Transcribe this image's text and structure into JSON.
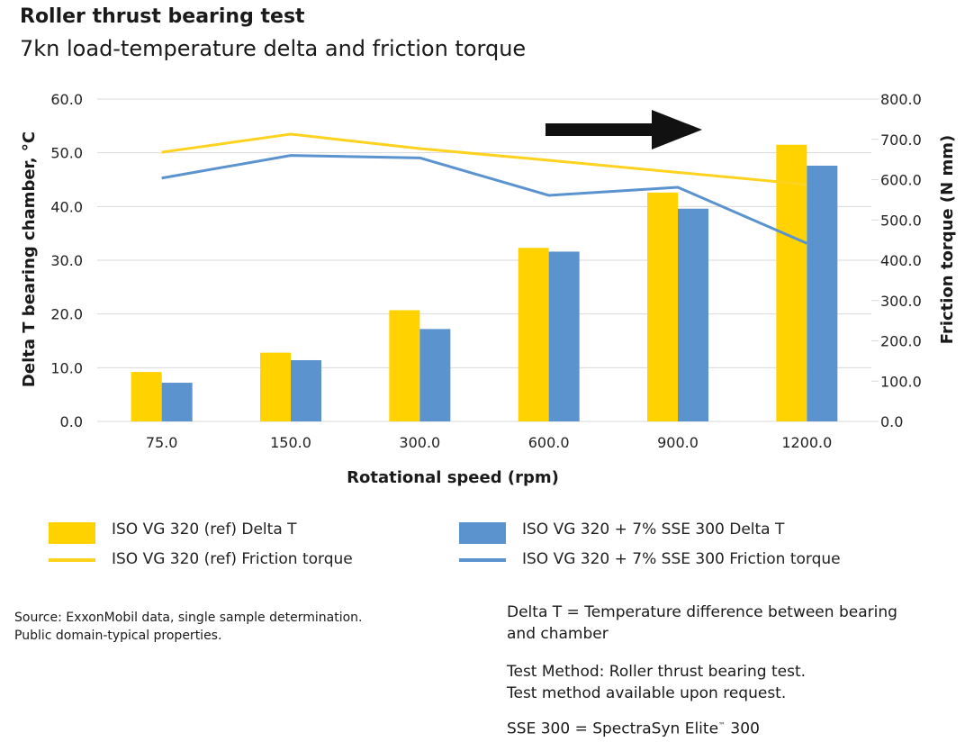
{
  "header": {
    "title": "Roller thrust bearing test",
    "subtitle": "7kn load-temperature delta and friction torque"
  },
  "colors": {
    "ref": "#FFD200",
    "sse": "#5B93CF",
    "ref_line": "#FFD21E",
    "sse_line": "#5B93CF",
    "grid": "#d9d9d9",
    "arrow": "#111111"
  },
  "chart_data": {
    "type": "bar",
    "categories": [
      "75.0",
      "150.0",
      "300.0",
      "600.0",
      "900.0",
      "1200.0"
    ],
    "xlabel": "Rotational speed (rpm)",
    "ylabel": "Delta T bearing chamber, °C",
    "y2label": "Friction torque (N mm)",
    "ylim": [
      0,
      60
    ],
    "y2lim": [
      0,
      800
    ],
    "yticks": [
      "0.0",
      "10.0",
      "20.0",
      "30.0",
      "40.0",
      "50.0",
      "60.0"
    ],
    "y2ticks": [
      "0.0",
      "100.0",
      "200.0",
      "300.0",
      "400.0",
      "500.0",
      "600.0",
      "700.0",
      "800.0"
    ],
    "grid": true,
    "series": [
      {
        "name": "ISO VG 320 (ref) Delta T",
        "type": "bar",
        "axis": "left",
        "values": [
          9.2,
          12.8,
          20.7,
          32.3,
          42.6,
          51.5
        ]
      },
      {
        "name": "ISO VG 320 + 7% SSE 300 Delta T",
        "type": "bar",
        "axis": "left",
        "values": [
          7.2,
          11.4,
          17.2,
          31.6,
          39.6,
          47.6
        ]
      },
      {
        "name": "ISO VG 320 (ref) Friction torque",
        "type": "line",
        "axis": "right",
        "values": [
          668,
          713,
          677,
          648,
          618,
          588
        ]
      },
      {
        "name": "ISO VG 320 + 7% SSE 300 Friction torque",
        "type": "line",
        "axis": "right",
        "values": [
          604,
          660,
          654,
          561,
          581,
          442
        ]
      }
    ],
    "annotations": [
      {
        "type": "arrow",
        "direction": "right"
      }
    ],
    "legend_placement": "bottom"
  },
  "notes": {
    "source_line1": "Source: ExxonMobil data, single sample determination.",
    "source_line2": "Public domain-typical properties.",
    "delta_def_line1": "Delta T = Temperature difference between bearing",
    "delta_def_line2": "and chamber",
    "method_line1": "Test Method: Roller thrust bearing test.",
    "method_line2": "Test method available upon request.",
    "sse_def": "SSE 300 = SpectraSyn Elite",
    "sse_tm": "™",
    "sse_num": " 300"
  }
}
